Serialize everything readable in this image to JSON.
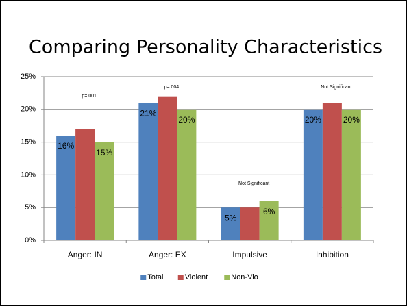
{
  "chart_data": {
    "type": "bar",
    "title": "Comparing Personality Characteristics",
    "categories": [
      "Anger: IN",
      "Anger: EX",
      "Impulsive",
      "Inhibition"
    ],
    "series": [
      {
        "name": "Total",
        "color": "#4f81bd",
        "values": [
          16,
          21,
          5,
          20
        ],
        "value_labels": [
          "16%",
          "21%",
          "5%",
          "20%"
        ]
      },
      {
        "name": "Violent",
        "color": "#c0504d",
        "values": [
          17,
          22,
          5,
          21
        ]
      },
      {
        "name": "Non-Vio",
        "color": "#9bbb59",
        "values": [
          15,
          20,
          6,
          20
        ],
        "value_labels": [
          "15%",
          "20%",
          "6%",
          "20%"
        ]
      }
    ],
    "annotations": [
      "p=.001",
      "p=.004",
      "Not Significant",
      "Not Significant"
    ],
    "ylim": [
      0,
      25
    ],
    "yticks": [
      {
        "value": 0,
        "label": "0%"
      },
      {
        "value": 5,
        "label": "5%"
      },
      {
        "value": 10,
        "label": "10%"
      },
      {
        "value": 15,
        "label": "15%"
      },
      {
        "value": 20,
        "label": "20%"
      },
      {
        "value": 25,
        "label": "25%"
      }
    ],
    "grid": true,
    "legend": "bottom"
  }
}
